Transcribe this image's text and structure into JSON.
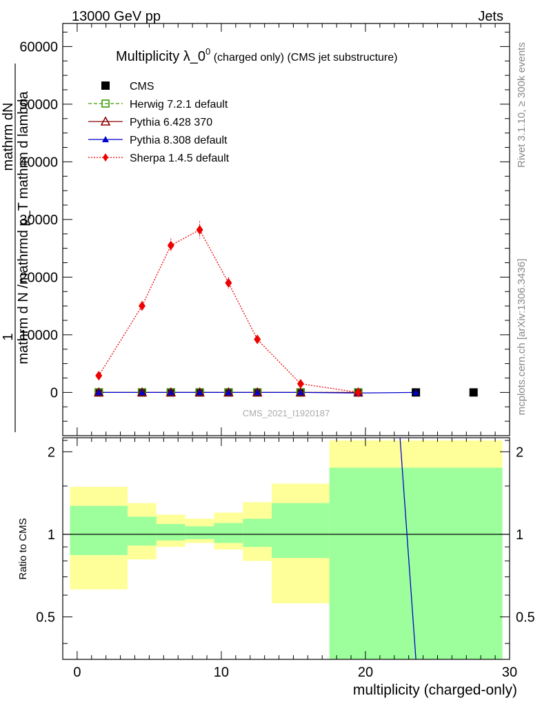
{
  "header": {
    "left": "13000 GeV pp",
    "right": "Jets"
  },
  "side": {
    "top": "Rivet 3.1.10, ≥ 300k events",
    "bottom": "mcplots.cern.ch [arXiv:1306.3436]"
  },
  "main": {
    "title": "Multiplicity λ_0",
    "title_sup": "0",
    "title_suffix": " (charged only) (CMS jet substructure)",
    "watermark": "CMS_2021_I1920187",
    "ylabel_top": "mathrm dN",
    "ylabel_numer": "1",
    "ylabel_frac": "mathrm d N /mathrmd p_T mathrm d lambda",
    "ylabel_p": "mathrm d p",
    "ylabel_sub": "T",
    "ylabel_rest": "mathrm d lambda",
    "ylabel_denom": "mathrm d N /mathrmd p"
  },
  "ratio": {
    "ylabel": "Ratio to CMS"
  },
  "xaxis": {
    "label": "multiplicity (charged-only)"
  },
  "colors": {
    "cms": "#000000",
    "herwig": "#3a9a00",
    "pythia6": "#8b0000",
    "pythia8": "#0000cc",
    "sherpa": "#ee0000",
    "band_inner": "#9cff9c",
    "band_outer": "#ffff99"
  },
  "chart_data": {
    "type": "scatter",
    "xlim": [
      -1,
      30
    ],
    "ylim": [
      -7500,
      64000
    ],
    "ratio_ylim": [
      0.35,
      2.25
    ],
    "x_ticks": [
      "0",
      "10",
      "20",
      "30"
    ],
    "x_tick_values": [
      0,
      10,
      20,
      30
    ],
    "y_ticks": [
      "0",
      "10000",
      "20000",
      "30000",
      "40000",
      "50000",
      "60000"
    ],
    "y_tick_values": [
      0,
      10000,
      20000,
      30000,
      40000,
      50000,
      60000
    ],
    "ratio_ticks": [
      "0.5",
      "1",
      "2"
    ],
    "ratio_tick_values": [
      0.5,
      1,
      2
    ],
    "series": [
      {
        "name": "CMS",
        "marker": "square",
        "x": [
          1.5,
          4.5,
          6.5,
          8.5,
          10.5,
          12.5,
          15.5,
          19.5,
          23.5,
          27.5
        ],
        "y": [
          0,
          0,
          0,
          0,
          0,
          0,
          0,
          0,
          0,
          0
        ]
      },
      {
        "name": "Herwig 7.2.1 default",
        "marker": "open-square",
        "style": "dashed",
        "x": [
          1.5,
          4.5,
          6.5,
          8.5,
          10.5,
          12.5,
          15.5,
          19.5
        ],
        "y": [
          0,
          0,
          0,
          0,
          0,
          0,
          0,
          0
        ]
      },
      {
        "name": "Pythia 6.428 370",
        "marker": "open-triangle",
        "style": "solid",
        "x": [
          1.5,
          4.5,
          6.5,
          8.5,
          10.5,
          12.5,
          15.5,
          19.5
        ],
        "y": [
          0,
          0,
          0,
          0,
          0,
          0,
          0,
          0
        ]
      },
      {
        "name": "Pythia 8.308 default",
        "marker": "triangle",
        "style": "solid",
        "x": [
          1.5,
          4.5,
          6.5,
          8.5,
          10.5,
          12.5,
          15.5,
          19.5,
          23.5
        ],
        "y": [
          0,
          0,
          0,
          0,
          0,
          0,
          0,
          -100,
          0
        ]
      },
      {
        "name": "Sherpa 1.4.5 default",
        "marker": "diamond",
        "style": "dotted",
        "x": [
          1.5,
          4.5,
          6.5,
          8.5,
          10.5,
          12.5,
          15.5,
          19.5
        ],
        "y": [
          2900,
          15000,
          25500,
          28200,
          19000,
          9200,
          1500,
          0
        ],
        "err": [
          300,
          900,
          1200,
          1500,
          1000,
          700,
          200,
          0
        ]
      }
    ],
    "ratio_bands": {
      "edges": [
        -0.5,
        3.5,
        5.5,
        7.5,
        9.5,
        11.5,
        13.5,
        17.5,
        29.5
      ],
      "inner_lo": [
        0.84,
        0.91,
        0.95,
        0.96,
        0.93,
        0.9,
        0.82,
        0.35
      ],
      "inner_hi": [
        1.27,
        1.16,
        1.09,
        1.07,
        1.1,
        1.14,
        1.3,
        1.75
      ],
      "outer_lo": [
        0.63,
        0.81,
        0.9,
        0.93,
        0.88,
        0.8,
        0.56,
        0.35
      ],
      "outer_hi": [
        1.49,
        1.3,
        1.18,
        1.14,
        1.2,
        1.31,
        1.53,
        2.2
      ]
    },
    "ratio_line": {
      "name": "Pythia 8.308 default",
      "x": [
        22.4,
        23.5
      ],
      "y": [
        2.25,
        0.35
      ]
    }
  }
}
